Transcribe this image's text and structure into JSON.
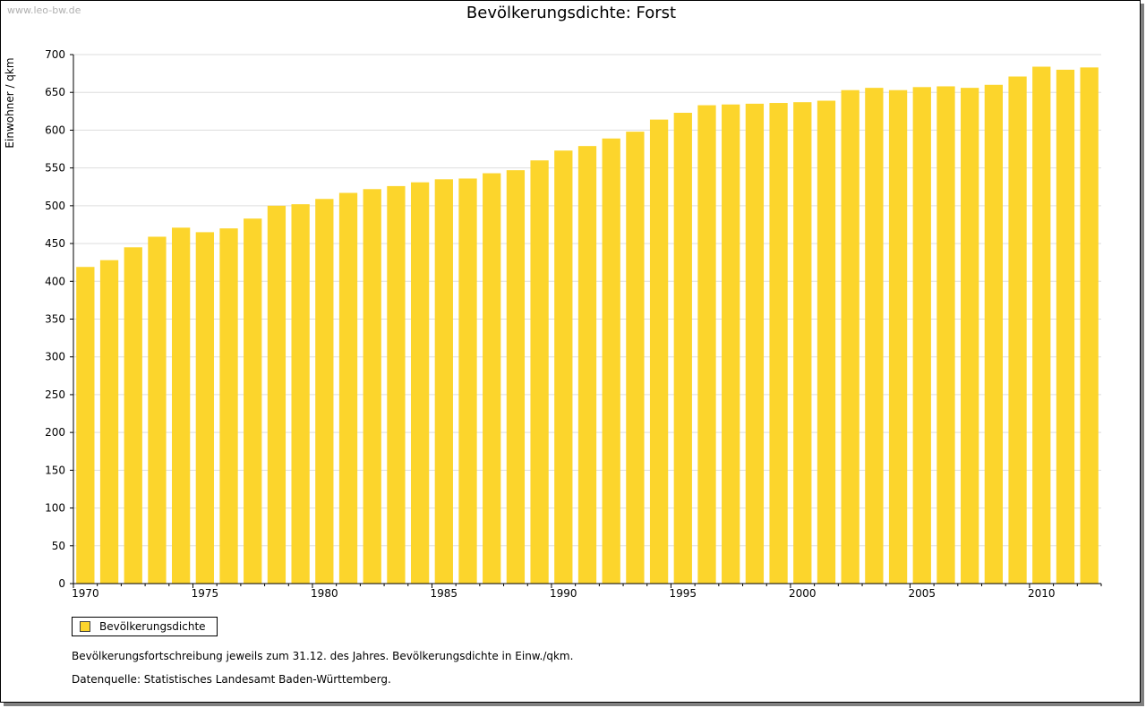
{
  "watermark": "www.leo-bw.de",
  "legend": {
    "label": "Bevölkerungsdichte"
  },
  "notes": [
    "Bevölkerungsfortschreibung jeweils zum 31.12. des Jahres. Bevölkerungsdichte in Einw./qkm.",
    "Datenquelle: Statistisches Landesamt Baden-Württemberg."
  ],
  "colors": {
    "bar": "#fcd52c",
    "grid": "#dddddd",
    "axis": "#000000"
  },
  "chart_data": {
    "type": "bar",
    "title": "Bevölkerungsdichte: Forst",
    "xlabel": "",
    "ylabel": "Einwohner / qkm",
    "ylim": [
      0,
      700
    ],
    "yticks": [
      0,
      50,
      100,
      150,
      200,
      250,
      300,
      350,
      400,
      450,
      500,
      550,
      600,
      650,
      700
    ],
    "xtick_labels": [
      "1970",
      "1975",
      "1980",
      "1985",
      "1990",
      "1995",
      "2000",
      "2005",
      "2010"
    ],
    "grid": true,
    "legend_position": "bottom-left",
    "categories": [
      "1970",
      "1971",
      "1972",
      "1973",
      "1974",
      "1975",
      "1976",
      "1977",
      "1978",
      "1979",
      "1980",
      "1981",
      "1982",
      "1983",
      "1984",
      "1985",
      "1986",
      "1987",
      "1988",
      "1989",
      "1990",
      "1991",
      "1992",
      "1993",
      "1994",
      "1995",
      "1996",
      "1997",
      "1998",
      "1999",
      "2000",
      "2001",
      "2002",
      "2003",
      "2004",
      "2005",
      "2006",
      "2007",
      "2008",
      "2009",
      "2010",
      "2011",
      "2012"
    ],
    "series": [
      {
        "name": "Bevölkerungsdichte",
        "values": [
          419,
          428,
          445,
          459,
          471,
          465,
          470,
          483,
          500,
          502,
          509,
          517,
          522,
          526,
          531,
          535,
          536,
          543,
          547,
          560,
          573,
          579,
          589,
          598,
          614,
          623,
          633,
          634,
          635,
          636,
          637,
          639,
          653,
          656,
          653,
          657,
          658,
          656,
          660,
          671,
          684,
          680,
          683
        ]
      }
    ]
  }
}
